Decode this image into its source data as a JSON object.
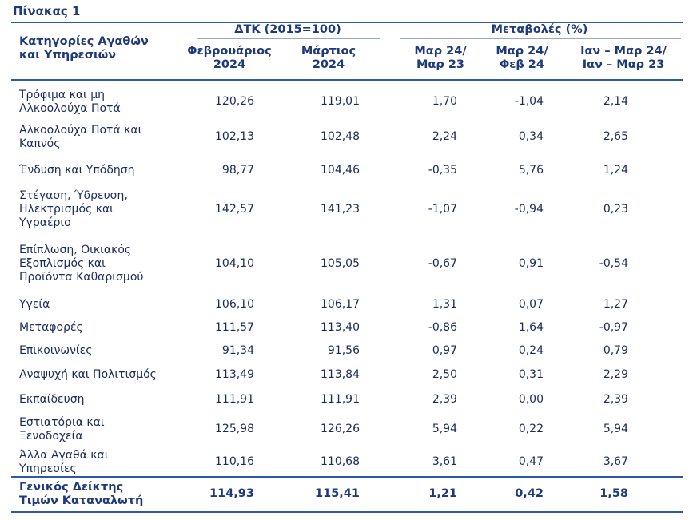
{
  "title": "Πίνακας 1",
  "header": {
    "category": [
      "Κατηγορίες Αγαθών",
      "και Υπηρεσιών"
    ],
    "group_cpi": "ΔΤΚ (2015=100)",
    "group_changes": "Μεταβολές (%)",
    "col_feb": [
      "Φεβρουάριος",
      "2024"
    ],
    "col_mar": [
      "Μάρτιος",
      "2024"
    ],
    "col_yoy": [
      "Μαρ 24/",
      "Μαρ 23"
    ],
    "col_mom": [
      "Μαρ 24/",
      "Φεβ 24"
    ],
    "col_ytd": [
      "Ιαν – Μαρ 24/",
      "Ιαν – Μαρ 23"
    ]
  },
  "rows": [
    {
      "category": [
        "Τρόφιμα και μη",
        "Αλκοολούχα Ποτά"
      ],
      "feb": "120,26",
      "mar": "119,01",
      "yoy": "1,70",
      "mom": "-1,04",
      "ytd": "2,14"
    },
    {
      "category": [
        "Αλκοολούχα Ποτά και",
        "Καπνός"
      ],
      "feb": "102,13",
      "mar": "102,48",
      "yoy": "2,24",
      "mom": "0,34",
      "ytd": "2,65"
    },
    {
      "category": [
        "Ένδυση και Υπόδηση"
      ],
      "feb": "98,77",
      "mar": "104,46",
      "yoy": "-0,35",
      "mom": "5,76",
      "ytd": "1,24"
    },
    {
      "category": [
        "Στέγαση, Ύδρευση,",
        "Ηλεκτρισμός και",
        "Υγραέριο"
      ],
      "feb": "142,57",
      "mar": "141,23",
      "yoy": "-1,07",
      "mom": "-0,94",
      "ytd": "0,23"
    },
    {
      "category": [
        "Επίπλωση, Οικιακός",
        "Εξοπλισμός και",
        "Προϊόντα Καθαρισμού"
      ],
      "feb": "104,10",
      "mar": "105,05",
      "yoy": "-0,67",
      "mom": "0,91",
      "ytd": "-0,54"
    },
    {
      "category": [
        "Υγεία"
      ],
      "feb": "106,10",
      "mar": "106,17",
      "yoy": "1,31",
      "mom": "0,07",
      "ytd": "1,27"
    },
    {
      "category": [
        "Μεταφορές"
      ],
      "feb": "111,57",
      "mar": "113,40",
      "yoy": "-0,86",
      "mom": "1,64",
      "ytd": "-0,97"
    },
    {
      "category": [
        "Επικοινωνίες"
      ],
      "feb": "91,34",
      "mar": "91,56",
      "yoy": "0,97",
      "mom": "0,24",
      "ytd": "0,79"
    },
    {
      "category": [
        "Αναψυχή και Πολιτισμός"
      ],
      "feb": "113,49",
      "mar": "113,84",
      "yoy": "2,50",
      "mom": "0,31",
      "ytd": "2,29"
    },
    {
      "category": [
        "Εκπαίδευση"
      ],
      "feb": "111,91",
      "mar": "111,91",
      "yoy": "2,39",
      "mom": "0,00",
      "ytd": "2,39"
    },
    {
      "category": [
        "Εστιατόρια και",
        "Ξενοδοχεία"
      ],
      "feb": "125,98",
      "mar": "126,26",
      "yoy": "5,94",
      "mom": "0,22",
      "ytd": "5,94"
    },
    {
      "category": [
        "Άλλα Αγαθά και",
        "Υπηρεσίες"
      ],
      "feb": "110,16",
      "mar": "110,68",
      "yoy": "3,61",
      "mom": "0,47",
      "ytd": "3,67"
    }
  ],
  "total": {
    "category": [
      "Γενικός Δείκτης",
      "Τιμών Καταναλωτή"
    ],
    "feb": "114,93",
    "mar": "115,41",
    "yoy": "1,21",
    "mom": "0,42",
    "ytd": "1,58"
  }
}
